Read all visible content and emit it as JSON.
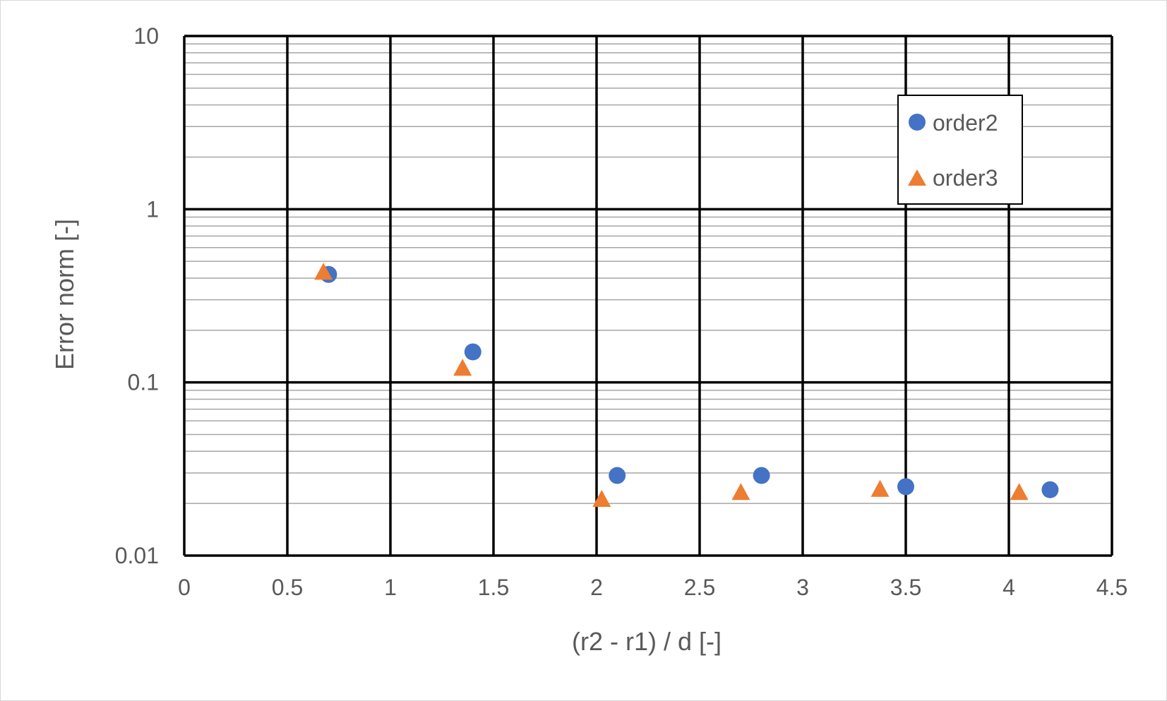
{
  "chart_data": {
    "type": "scatter",
    "title": "",
    "xlabel": "(r2 - r1)  /  d [-]",
    "ylabel": "Error norm [-]",
    "xlim": [
      0,
      4.5
    ],
    "ylim": [
      0.01,
      10
    ],
    "x_scale": "linear",
    "y_scale": "log",
    "x_ticks": [
      0,
      0.5,
      1,
      1.5,
      2,
      2.5,
      3,
      3.5,
      4,
      4.5
    ],
    "x_tick_labels": [
      "0",
      "0.5",
      "1",
      "1.5",
      "2",
      "2.5",
      "3",
      "3.5",
      "4",
      "4.5"
    ],
    "y_ticks": [
      0.01,
      0.1,
      1,
      10
    ],
    "y_tick_labels": [
      "0.01",
      "0.1",
      "1",
      "10"
    ],
    "grid": {
      "major": true,
      "minor_y": true
    },
    "legend_position": "top-right",
    "series": [
      {
        "name": "order2",
        "marker": "circle",
        "color": "#4472C4",
        "x": [
          0.7,
          1.4,
          2.1,
          2.8,
          3.5,
          4.2
        ],
        "y": [
          0.42,
          0.15,
          0.029,
          0.029,
          0.025,
          0.024
        ]
      },
      {
        "name": "order3",
        "marker": "triangle",
        "color": "#ED7D31",
        "x": [
          0.675,
          1.35,
          2.025,
          2.7,
          3.375,
          4.05
        ],
        "y": [
          0.43,
          0.12,
          0.021,
          0.023,
          0.024,
          0.023
        ]
      }
    ]
  }
}
